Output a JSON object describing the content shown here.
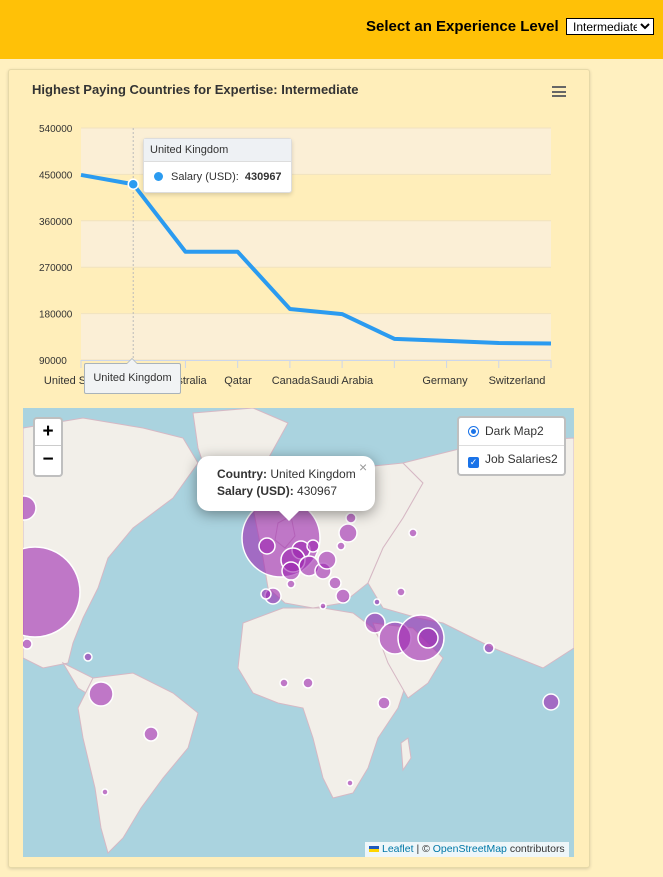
{
  "header": {
    "label": "Select an Experience Level",
    "selected": "Intermediate"
  },
  "chart": {
    "menu_icon": "hamburger-menu-icon"
  },
  "chart_data": {
    "type": "line",
    "title": "Highest Paying Countries for Expertise: Intermediate",
    "categories": [
      "United States",
      "United Kingdom",
      "Australia",
      "Qatar",
      "Canada",
      "Saudi Arabia",
      "",
      "",
      "Germany",
      "Switzerland"
    ],
    "category_labels_shown": [
      "United S",
      "",
      "stralia",
      "Qatar",
      "Canada",
      "Saudi Arabia",
      "",
      "",
      "Germany",
      "Switzerland"
    ],
    "series": [
      {
        "name": "Salary (USD)",
        "color": "#2b9bf0",
        "values": [
          449000,
          430967,
          300000,
          300000,
          189000,
          179000,
          131000,
          127000,
          123000,
          122000
        ]
      }
    ],
    "y_ticks": [
      "540000",
      "450000",
      "360000",
      "270000",
      "180000",
      "90000"
    ],
    "ylim": [
      90000,
      540000
    ],
    "grid": true,
    "tooltip": {
      "category": "United Kingdom",
      "series": "Salary (USD):",
      "value": "430967"
    },
    "crosshair_label": "United Kingdom"
  },
  "map": {
    "zoom_in": "+",
    "zoom_out": "−",
    "layers": {
      "base": "Dark Map2",
      "overlay": "Job Salaries2"
    },
    "popup": {
      "country_key": "Country:",
      "country_value": "United Kingdom",
      "salary_key": "Salary (USD):",
      "salary_value": "430967",
      "close": "×"
    },
    "attribution": {
      "leaflet": "Leaflet",
      "sep": "| ©",
      "osm": "OpenStreetMap",
      "suffix": "contributors"
    },
    "bubble_color": "#9c27b0"
  }
}
